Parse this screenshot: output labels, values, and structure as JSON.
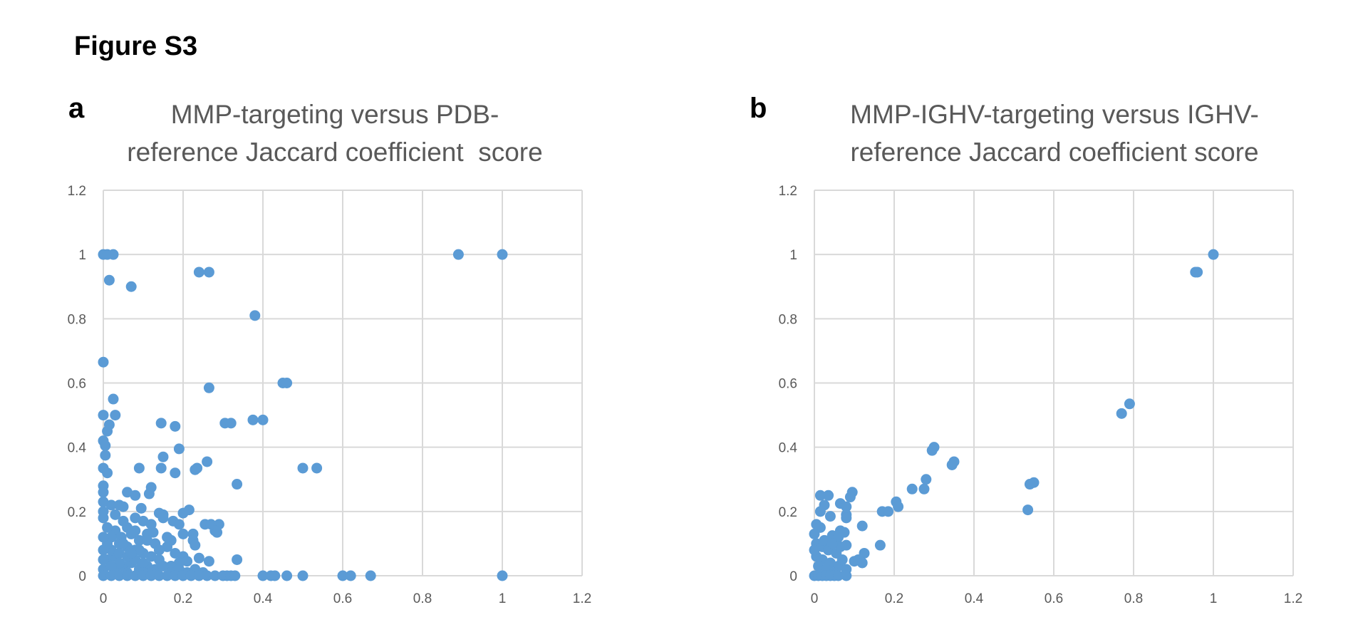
{
  "figure_title": "Figure S3",
  "panels": [
    {
      "letter": "a",
      "title": "MMP-targeting versus PDB-\nreference Jaccard coefficient  score"
    },
    {
      "letter": "b",
      "title": "MMP-IGHV-targeting versus IGHV-\nreference Jaccard coefficient score"
    }
  ],
  "colors": {
    "marker": "#5b9bd5",
    "grid": "#d9d9d9",
    "text": "#595959"
  },
  "chart_data": [
    {
      "type": "scatter",
      "title": "MMP-targeting versus PDB-reference Jaccard coefficient  score",
      "xlabel": "",
      "ylabel": "",
      "xlim": [
        0,
        1.2
      ],
      "ylim": [
        0,
        1.2
      ],
      "xticks": [
        "0",
        "0.2",
        "0.4",
        "0.6",
        "0.8",
        "1",
        "1.2"
      ],
      "yticks": [
        "0",
        "0.2",
        "0.4",
        "0.6",
        "0.8",
        "1",
        "1.2"
      ],
      "grid": true,
      "points": [
        [
          0,
          1
        ],
        [
          0.01,
          1
        ],
        [
          0.025,
          1
        ],
        [
          0.015,
          0.92
        ],
        [
          0.07,
          0.9
        ],
        [
          0.24,
          0.945
        ],
        [
          0.265,
          0.945
        ],
        [
          0.89,
          1
        ],
        [
          1,
          1
        ],
        [
          0.38,
          0.81
        ],
        [
          0,
          0.665
        ],
        [
          0.265,
          0.585
        ],
        [
          0.45,
          0.6
        ],
        [
          0.46,
          0.6
        ],
        [
          0.025,
          0.55
        ],
        [
          0,
          0.5
        ],
        [
          0.03,
          0.5
        ],
        [
          0.375,
          0.485
        ],
        [
          0.4,
          0.485
        ],
        [
          0.015,
          0.47
        ],
        [
          0.145,
          0.475
        ],
        [
          0.18,
          0.465
        ],
        [
          0.01,
          0.45
        ],
        [
          0,
          0.42
        ],
        [
          0.005,
          0.405
        ],
        [
          0.19,
          0.395
        ],
        [
          0.005,
          0.375
        ],
        [
          0.15,
          0.37
        ],
        [
          0.305,
          0.475
        ],
        [
          0.32,
          0.475
        ],
        [
          0.26,
          0.355
        ],
        [
          0.5,
          0.335
        ],
        [
          0.535,
          0.335
        ],
        [
          0,
          0.335
        ],
        [
          0.235,
          0.335
        ],
        [
          0.23,
          0.33
        ],
        [
          0.145,
          0.335
        ],
        [
          0.01,
          0.32
        ],
        [
          0.09,
          0.335
        ],
        [
          0.18,
          0.32
        ],
        [
          0.335,
          0.285
        ],
        [
          0.12,
          0.275
        ],
        [
          0.06,
          0.26
        ],
        [
          0.115,
          0.255
        ],
        [
          0.08,
          0.25
        ],
        [
          0.0,
          0.28
        ],
        [
          0.0,
          0.26
        ],
        [
          0.02,
          0.22
        ],
        [
          0.04,
          0.22
        ],
        [
          0.05,
          0.215
        ],
        [
          0.095,
          0.21
        ],
        [
          0.14,
          0.195
        ],
        [
          0.15,
          0.19
        ],
        [
          0.2,
          0.195
        ],
        [
          0.215,
          0.205
        ],
        [
          0.175,
          0.17
        ],
        [
          0.255,
          0.16
        ],
        [
          0.27,
          0.16
        ],
        [
          0.29,
          0.16
        ],
        [
          0.15,
          0.18
        ],
        [
          0.19,
          0.16
        ],
        [
          0.28,
          0.14
        ],
        [
          0.285,
          0.135
        ],
        [
          0.225,
          0.13
        ],
        [
          0.11,
          0.13
        ],
        [
          0.125,
          0.135
        ],
        [
          0.2,
          0.13
        ],
        [
          0.17,
          0.11
        ],
        [
          0.225,
          0.11
        ],
        [
          0.23,
          0.095
        ],
        [
          0.08,
          0.18
        ],
        [
          0.1,
          0.17
        ],
        [
          0.06,
          0.15
        ],
        [
          0.03,
          0.14
        ],
        [
          0.045,
          0.12
        ],
        [
          0.09,
          0.11
        ],
        [
          0.13,
          0.1
        ],
        [
          0.16,
          0.09
        ],
        [
          0.18,
          0.07
        ],
        [
          0.2,
          0.06
        ],
        [
          0.24,
          0.055
        ],
        [
          0.265,
          0.045
        ],
        [
          0.335,
          0.05
        ],
        [
          0.21,
          0.045
        ],
        [
          0.19,
          0.04
        ],
        [
          0.17,
          0.03
        ],
        [
          0.14,
          0.05
        ],
        [
          0.12,
          0.06
        ],
        [
          0.1,
          0.07
        ],
        [
          0.08,
          0.08
        ],
        [
          0.06,
          0.09
        ],
        [
          0.04,
          0.1
        ],
        [
          0.02,
          0.12
        ],
        [
          0.01,
          0.15
        ],
        [
          0.0,
          0.18
        ],
        [
          0.0,
          0.2
        ],
        [
          0.0,
          0.23
        ],
        [
          0.01,
          0.05
        ],
        [
          0.03,
          0.06
        ],
        [
          0.05,
          0.03
        ],
        [
          0.07,
          0.04
        ],
        [
          0.09,
          0.02
        ],
        [
          0.11,
          0.03
        ],
        [
          0.13,
          0.02
        ],
        [
          0.15,
          0.03
        ],
        [
          0.17,
          0.01
        ],
        [
          0.19,
          0.02
        ],
        [
          0.21,
          0.01
        ],
        [
          0.23,
          0.02
        ],
        [
          0.25,
          0.01
        ],
        [
          0.02,
          0.08
        ],
        [
          0.04,
          0.07
        ],
        [
          0.06,
          0.06
        ],
        [
          0.08,
          0.05
        ],
        [
          0.1,
          0.04
        ],
        [
          0.12,
          0.01
        ],
        [
          0.14,
          0.08
        ],
        [
          0.16,
          0.12
        ],
        [
          0.05,
          0.17
        ],
        [
          0.07,
          0.13
        ],
        [
          0.03,
          0.19
        ],
        [
          0.01,
          0.1
        ],
        [
          0.0,
          0.12
        ],
        [
          0.0,
          0.08
        ],
        [
          0.0,
          0.05
        ],
        [
          0.0,
          0.02
        ],
        [
          0.03,
          0.02
        ],
        [
          0.06,
          0.01
        ],
        [
          0.09,
          0.08
        ],
        [
          0.11,
          0.11
        ],
        [
          0.08,
          0.14
        ],
        [
          0.12,
          0.16
        ],
        [
          0.04,
          0.04
        ],
        [
          0.02,
          0.03
        ],
        [
          0.1,
          0.01
        ],
        [
          0.07,
          0.07
        ],
        [
          0.05,
          0.1
        ],
        [
          0,
          0
        ],
        [
          0.02,
          0
        ],
        [
          0.04,
          0
        ],
        [
          0.06,
          0
        ],
        [
          0.08,
          0
        ],
        [
          0.1,
          0
        ],
        [
          0.12,
          0
        ],
        [
          0.14,
          0
        ],
        [
          0.16,
          0
        ],
        [
          0.18,
          0
        ],
        [
          0.2,
          0
        ],
        [
          0.22,
          0
        ],
        [
          0.24,
          0
        ],
        [
          0.26,
          0
        ],
        [
          0.28,
          0
        ],
        [
          0.3,
          0
        ],
        [
          0.31,
          0
        ],
        [
          0.32,
          0
        ],
        [
          0.33,
          0
        ],
        [
          0.4,
          0
        ],
        [
          0.42,
          0
        ],
        [
          0.43,
          0
        ],
        [
          0.46,
          0
        ],
        [
          0.5,
          0
        ],
        [
          0.6,
          0
        ],
        [
          0.62,
          0
        ],
        [
          0.67,
          0
        ],
        [
          1,
          0
        ]
      ]
    },
    {
      "type": "scatter",
      "title": "MMP-IGHV-targeting versus IGHV-reference Jaccard coefficient score",
      "xlabel": "",
      "ylabel": "",
      "xlim": [
        0,
        1.2
      ],
      "ylim": [
        0,
        1.2
      ],
      "xticks": [
        "0",
        "0.2",
        "0.4",
        "0.6",
        "0.8",
        "1",
        "1.2"
      ],
      "yticks": [
        "0",
        "0.2",
        "0.4",
        "0.6",
        "0.8",
        "1",
        "1.2"
      ],
      "grid": true,
      "points": [
        [
          1,
          1
        ],
        [
          0.955,
          0.945
        ],
        [
          0.96,
          0.945
        ],
        [
          0.79,
          0.535
        ],
        [
          0.77,
          0.505
        ],
        [
          0.3,
          0.4
        ],
        [
          0.295,
          0.39
        ],
        [
          0.35,
          0.355
        ],
        [
          0.345,
          0.345
        ],
        [
          0.55,
          0.29
        ],
        [
          0.54,
          0.285
        ],
        [
          0.535,
          0.205
        ],
        [
          0.28,
          0.3
        ],
        [
          0.245,
          0.27
        ],
        [
          0.275,
          0.27
        ],
        [
          0.205,
          0.23
        ],
        [
          0.21,
          0.215
        ],
        [
          0.17,
          0.2
        ],
        [
          0.185,
          0.2
        ],
        [
          0.165,
          0.095
        ],
        [
          0.12,
          0.155
        ],
        [
          0.095,
          0.26
        ],
        [
          0.09,
          0.245
        ],
        [
          0.015,
          0.25
        ],
        [
          0.035,
          0.25
        ],
        [
          0.025,
          0.22
        ],
        [
          0.015,
          0.2
        ],
        [
          0.065,
          0.225
        ],
        [
          0.08,
          0.215
        ],
        [
          0.08,
          0.19
        ],
        [
          0.04,
          0.185
        ],
        [
          0.08,
          0.18
        ],
        [
          0.065,
          0.14
        ],
        [
          0.075,
          0.135
        ],
        [
          0.005,
          0.16
        ],
        [
          0.015,
          0.15
        ],
        [
          0.045,
          0.125
        ],
        [
          0.06,
          0.12
        ],
        [
          0.005,
          0.1
        ],
        [
          0.02,
          0.09
        ],
        [
          0.035,
          0.08
        ],
        [
          0.055,
          0.07
        ],
        [
          0.065,
          0.09
        ],
        [
          0.08,
          0.095
        ],
        [
          0.1,
          0.045
        ],
        [
          0.11,
          0.05
        ],
        [
          0.125,
          0.07
        ],
        [
          0.12,
          0.04
        ],
        [
          0.005,
          0.06
        ],
        [
          0.02,
          0.05
        ],
        [
          0.04,
          0.04
        ],
        [
          0.06,
          0.03
        ],
        [
          0.08,
          0.02
        ],
        [
          0.01,
          0.03
        ],
        [
          0.03,
          0.02
        ],
        [
          0.05,
          0.01
        ],
        [
          0.07,
          0.05
        ],
        [
          0.025,
          0.11
        ],
        [
          0.045,
          0.1
        ],
        [
          0.0,
          0.13
        ],
        [
          0.0,
          0.08
        ],
        [
          0,
          0
        ],
        [
          0.01,
          0
        ],
        [
          0.02,
          0
        ],
        [
          0.03,
          0
        ],
        [
          0.04,
          0
        ],
        [
          0.05,
          0
        ],
        [
          0.06,
          0
        ],
        [
          0.08,
          0
        ]
      ]
    }
  ]
}
